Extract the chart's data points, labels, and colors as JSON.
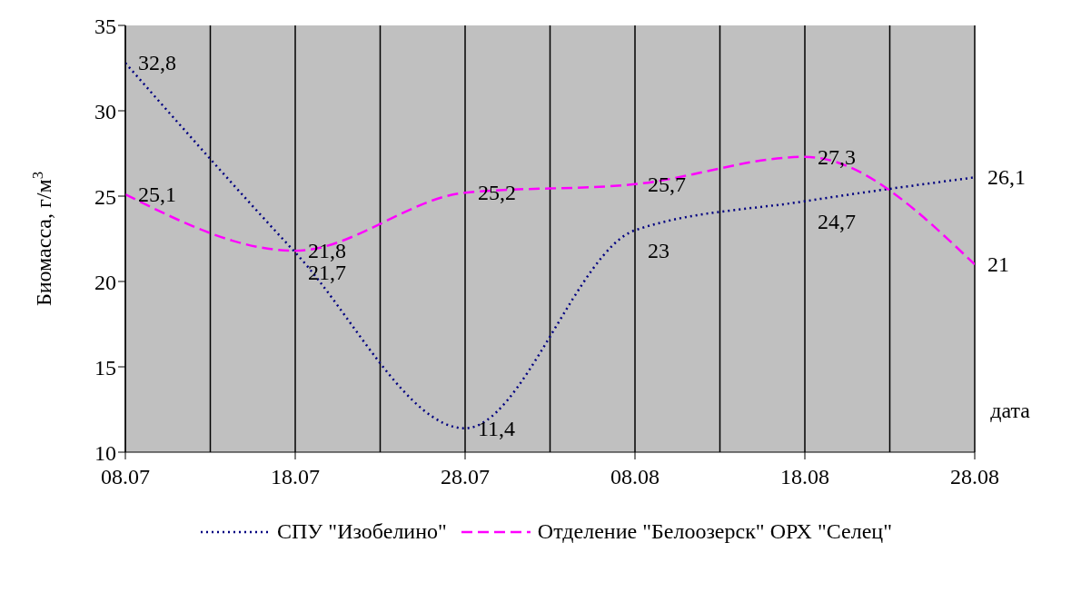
{
  "chart_data": {
    "type": "line",
    "categories": [
      "08.07",
      "18.07",
      "28.07",
      "08.08",
      "18.08",
      "28.08"
    ],
    "xlabel": "дата",
    "ylabel": "Биомасса, г/м$^{3}$",
    "ylim": [
      10,
      35
    ],
    "yticks": [
      10,
      15,
      20,
      25,
      30,
      35
    ],
    "grid": "x",
    "legend": "bottom",
    "marker": "none",
    "series": [
      {
        "name": "СПУ \"Изобелино\"",
        "color": "#000080",
        "line_style": "dotted",
        "values": [
          32.8,
          21.7,
          11.4,
          23,
          24.7,
          26.1
        ],
        "value_labels": [
          "32,8",
          "21,7",
          "11,4",
          "23",
          "24,7",
          "26,1"
        ]
      },
      {
        "name": "Отделение \"Белоозерск\" ОРХ \"Селец\"",
        "color": "#ff00ff",
        "line_style": "dashed",
        "values": [
          25.1,
          21.8,
          25.2,
          25.7,
          27.3,
          21
        ],
        "value_labels": [
          "25,1",
          "21,8",
          "25,2",
          "25,7",
          "27,3",
          "21"
        ]
      }
    ]
  }
}
